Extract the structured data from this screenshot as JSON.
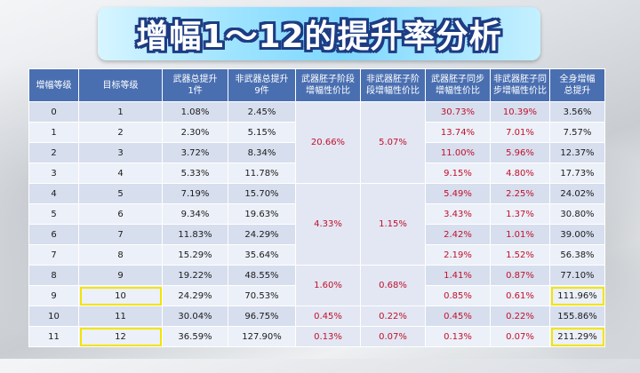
{
  "title": "增幅1～12的提升率分析",
  "headers": [
    "增幅等级",
    "目标等级",
    "武器总提升1件",
    "非武器总提升9件",
    "武器胚子阶段增幅性价比",
    "非武器胚子阶段增幅性价比",
    "武器胚子同步增幅性价比",
    "非武器胚子同步增幅性价比",
    "全身增幅总提升"
  ],
  "header_lines": [
    [
      "增幅等级"
    ],
    [
      "目标等级"
    ],
    [
      "武器总提升",
      "1件"
    ],
    [
      "非武器总提升",
      "9件"
    ],
    [
      "武器胚子阶段",
      "增幅性价比"
    ],
    [
      "非武器胚子阶",
      "段增幅性价比"
    ],
    [
      "武器胚子同步",
      "增幅性价比"
    ],
    [
      "非武器胚子同",
      "步增幅性价比"
    ],
    [
      "全身增幅",
      "总提升"
    ]
  ],
  "rows": [
    {
      "level": "0",
      "target": "1",
      "weapon": "1.08%",
      "nonweapon": "2.45%",
      "w_sync": "30.73%",
      "nw_sync": "10.39%",
      "total": "3.56%"
    },
    {
      "level": "1",
      "target": "2",
      "weapon": "2.30%",
      "nonweapon": "5.15%",
      "w_sync": "13.74%",
      "nw_sync": "7.01%",
      "total": "7.57%"
    },
    {
      "level": "2",
      "target": "3",
      "weapon": "3.72%",
      "nonweapon": "8.34%",
      "w_sync": "11.00%",
      "nw_sync": "5.96%",
      "total": "12.37%"
    },
    {
      "level": "3",
      "target": "4",
      "weapon": "5.33%",
      "nonweapon": "11.78%",
      "w_sync": "9.15%",
      "nw_sync": "4.80%",
      "total": "17.73%"
    },
    {
      "level": "4",
      "target": "5",
      "weapon": "7.19%",
      "nonweapon": "15.70%",
      "w_sync": "5.49%",
      "nw_sync": "2.25%",
      "total": "24.02%"
    },
    {
      "level": "5",
      "target": "6",
      "weapon": "9.34%",
      "nonweapon": "19.63%",
      "w_sync": "3.43%",
      "nw_sync": "1.37%",
      "total": "30.80%"
    },
    {
      "level": "6",
      "target": "7",
      "weapon": "11.83%",
      "nonweapon": "24.29%",
      "w_sync": "2.42%",
      "nw_sync": "1.01%",
      "total": "39.00%"
    },
    {
      "level": "7",
      "target": "8",
      "weapon": "15.29%",
      "nonweapon": "35.64%",
      "w_sync": "2.19%",
      "nw_sync": "1.52%",
      "total": "56.38%"
    },
    {
      "level": "8",
      "target": "9",
      "weapon": "19.22%",
      "nonweapon": "48.55%",
      "w_sync": "1.41%",
      "nw_sync": "0.87%",
      "total": "77.10%"
    },
    {
      "level": "9",
      "target": "10",
      "weapon": "24.29%",
      "nonweapon": "70.53%",
      "w_sync": "0.85%",
      "nw_sync": "0.61%",
      "total": "111.96%"
    },
    {
      "level": "10",
      "target": "11",
      "weapon": "30.04%",
      "nonweapon": "96.75%",
      "w_sync": "0.45%",
      "nw_sync": "0.22%",
      "total": "155.86%"
    },
    {
      "level": "11",
      "target": "12",
      "weapon": "36.59%",
      "nonweapon": "127.90%",
      "w_sync": "0.13%",
      "nw_sync": "0.07%",
      "total": "211.29%"
    }
  ],
  "stage_groups": [
    {
      "span": 4,
      "weapon": "20.66%",
      "nonweapon": "5.07%"
    },
    {
      "span": 4,
      "weapon": "4.33%",
      "nonweapon": "1.15%"
    },
    {
      "span": 2,
      "weapon": "1.60%",
      "nonweapon": "0.68%"
    },
    {
      "span": 1,
      "weapon": "0.45%",
      "nonweapon": "0.22%"
    },
    {
      "span": 1,
      "weapon": "0.13%",
      "nonweapon": "0.07%"
    }
  ],
  "highlighted_cells": [
    {
      "row": 9,
      "col": "target"
    },
    {
      "row": 9,
      "col": "total"
    },
    {
      "row": 11,
      "col": "target"
    },
    {
      "row": 11,
      "col": "total"
    }
  ],
  "colors": {
    "header_bg": "#4a6fb1",
    "row_odd": "#d7deee",
    "row_even": "#ecf0f8",
    "value_red": "#c0102a",
    "highlight": "#f2e400"
  }
}
